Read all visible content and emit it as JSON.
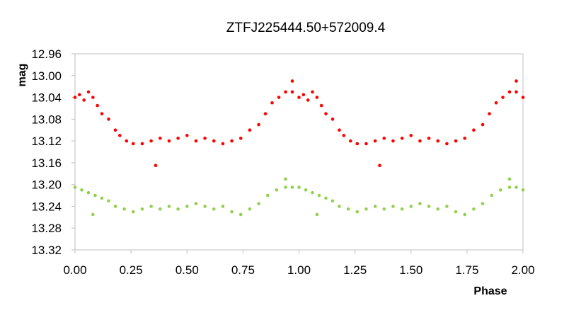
{
  "chart_data": {
    "type": "scatter",
    "title": "ZTFJ225444.50+572009.4",
    "xlabel": "Phase",
    "ylabel": "mag",
    "xlim": [
      0,
      2
    ],
    "ylim": [
      12.96,
      13.32
    ],
    "y_inverted": true,
    "grid": false,
    "legend": "none",
    "x_ticks": [
      "0.00",
      "0.25",
      "0.50",
      "0.75",
      "1.00",
      "1.25",
      "1.50",
      "1.75",
      "2.00"
    ],
    "y_ticks": [
      "12.96",
      "13.00",
      "13.04",
      "13.08",
      "13.12",
      "13.16",
      "13.20",
      "13.24",
      "13.28",
      "13.32"
    ],
    "series": [
      {
        "color": "#ff0000",
        "points": [
          [
            0.0,
            13.04
          ],
          [
            0.02,
            13.035
          ],
          [
            0.04,
            13.045
          ],
          [
            0.06,
            13.03
          ],
          [
            0.08,
            13.04
          ],
          [
            0.1,
            13.055
          ],
          [
            0.12,
            13.07
          ],
          [
            0.15,
            13.08
          ],
          [
            0.18,
            13.1
          ],
          [
            0.2,
            13.11
          ],
          [
            0.23,
            13.12
          ],
          [
            0.26,
            13.125
          ],
          [
            0.3,
            13.125
          ],
          [
            0.34,
            13.12
          ],
          [
            0.38,
            13.115
          ],
          [
            0.42,
            13.12
          ],
          [
            0.46,
            13.115
          ],
          [
            0.5,
            13.11
          ],
          [
            0.54,
            13.12
          ],
          [
            0.58,
            13.115
          ],
          [
            0.62,
            13.12
          ],
          [
            0.66,
            13.125
          ],
          [
            0.7,
            13.12
          ],
          [
            0.74,
            13.115
          ],
          [
            0.78,
            13.1
          ],
          [
            0.82,
            13.09
          ],
          [
            0.85,
            13.07
          ],
          [
            0.88,
            13.05
          ],
          [
            0.91,
            13.04
          ],
          [
            0.94,
            13.03
          ],
          [
            0.97,
            13.03
          ],
          [
            1.0,
            13.04
          ],
          [
            1.02,
            13.035
          ],
          [
            1.04,
            13.045
          ],
          [
            1.06,
            13.03
          ],
          [
            1.08,
            13.04
          ],
          [
            1.1,
            13.055
          ],
          [
            1.12,
            13.07
          ],
          [
            1.15,
            13.08
          ],
          [
            1.18,
            13.1
          ],
          [
            1.2,
            13.11
          ],
          [
            1.23,
            13.12
          ],
          [
            1.26,
            13.125
          ],
          [
            1.3,
            13.125
          ],
          [
            1.34,
            13.12
          ],
          [
            1.38,
            13.115
          ],
          [
            1.42,
            13.12
          ],
          [
            1.46,
            13.115
          ],
          [
            1.5,
            13.11
          ],
          [
            1.54,
            13.12
          ],
          [
            1.58,
            13.115
          ],
          [
            1.62,
            13.12
          ],
          [
            1.66,
            13.125
          ],
          [
            1.7,
            13.12
          ],
          [
            1.74,
            13.115
          ],
          [
            1.78,
            13.1
          ],
          [
            1.82,
            13.09
          ],
          [
            1.85,
            13.07
          ],
          [
            1.88,
            13.05
          ],
          [
            1.91,
            13.04
          ],
          [
            1.94,
            13.03
          ],
          [
            1.97,
            13.03
          ],
          [
            2.0,
            13.04
          ],
          [
            0.36,
            13.165
          ],
          [
            1.36,
            13.165
          ],
          [
            0.97,
            13.01
          ],
          [
            1.97,
            13.01
          ]
        ]
      },
      {
        "color": "#92d050",
        "points": [
          [
            0.0,
            13.205
          ],
          [
            0.03,
            13.21
          ],
          [
            0.06,
            13.215
          ],
          [
            0.09,
            13.22
          ],
          [
            0.12,
            13.225
          ],
          [
            0.15,
            13.23
          ],
          [
            0.18,
            13.24
          ],
          [
            0.22,
            13.245
          ],
          [
            0.26,
            13.25
          ],
          [
            0.3,
            13.245
          ],
          [
            0.34,
            13.24
          ],
          [
            0.38,
            13.245
          ],
          [
            0.42,
            13.24
          ],
          [
            0.46,
            13.245
          ],
          [
            0.5,
            13.24
          ],
          [
            0.54,
            13.235
          ],
          [
            0.58,
            13.24
          ],
          [
            0.62,
            13.245
          ],
          [
            0.66,
            13.24
          ],
          [
            0.7,
            13.25
          ],
          [
            0.74,
            13.255
          ],
          [
            0.78,
            13.245
          ],
          [
            0.82,
            13.235
          ],
          [
            0.86,
            13.22
          ],
          [
            0.9,
            13.21
          ],
          [
            0.94,
            13.205
          ],
          [
            0.97,
            13.205
          ],
          [
            1.0,
            13.205
          ],
          [
            1.03,
            13.21
          ],
          [
            1.06,
            13.215
          ],
          [
            1.09,
            13.22
          ],
          [
            1.12,
            13.225
          ],
          [
            1.15,
            13.23
          ],
          [
            1.18,
            13.24
          ],
          [
            1.22,
            13.245
          ],
          [
            1.26,
            13.25
          ],
          [
            1.3,
            13.245
          ],
          [
            1.34,
            13.24
          ],
          [
            1.38,
            13.245
          ],
          [
            1.42,
            13.24
          ],
          [
            1.46,
            13.245
          ],
          [
            1.5,
            13.24
          ],
          [
            1.54,
            13.235
          ],
          [
            1.58,
            13.24
          ],
          [
            1.62,
            13.245
          ],
          [
            1.66,
            13.24
          ],
          [
            1.7,
            13.25
          ],
          [
            1.74,
            13.255
          ],
          [
            1.78,
            13.245
          ],
          [
            1.82,
            13.235
          ],
          [
            1.86,
            13.22
          ],
          [
            1.9,
            13.21
          ],
          [
            1.94,
            13.205
          ],
          [
            1.97,
            13.205
          ],
          [
            2.0,
            13.21
          ],
          [
            0.08,
            13.255
          ],
          [
            1.08,
            13.255
          ],
          [
            0.94,
            13.19
          ],
          [
            1.94,
            13.19
          ]
        ]
      }
    ]
  }
}
